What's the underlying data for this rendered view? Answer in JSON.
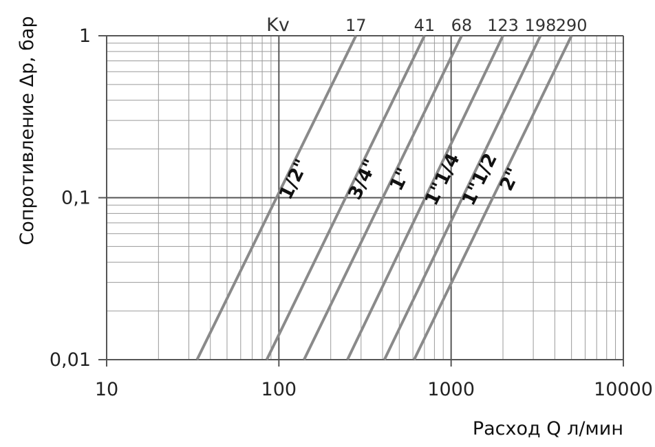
{
  "chart_data": {
    "type": "line",
    "title": "",
    "xlabel": "Расход Q л/мин",
    "ylabel": "Сопротивление Δp, бар",
    "x_scale": "log",
    "y_scale": "log",
    "xlim": [
      10,
      10000
    ],
    "ylim": [
      0.01,
      1
    ],
    "grid": true,
    "x_tick_labels": [
      "10",
      "100",
      "1000",
      "10000"
    ],
    "y_tick_labels": [
      "0,01",
      "0,1",
      "1"
    ],
    "kv_header": "Kv",
    "series": [
      {
        "name": "1/2\"",
        "kv": "17",
        "x": [
          33.5,
          280
        ],
        "y": [
          0.01,
          1
        ]
      },
      {
        "name": "3/4\"",
        "kv": "41",
        "x": [
          85,
          700
        ],
        "y": [
          0.01,
          1
        ]
      },
      {
        "name": "1\"",
        "kv": "68",
        "x": [
          140,
          1150
        ],
        "y": [
          0.01,
          1
        ]
      },
      {
        "name": "1\"1/4",
        "kv": "123",
        "x": [
          250,
          2000
        ],
        "y": [
          0.01,
          1
        ]
      },
      {
        "name": "1\"1/2",
        "kv": "198",
        "x": [
          410,
          3300
        ],
        "y": [
          0.01,
          1
        ]
      },
      {
        "name": "2\"",
        "kv": "290",
        "x": [
          610,
          5000
        ],
        "y": [
          0.01,
          1
        ]
      }
    ],
    "colors": {
      "curve": "#8a8a8a",
      "grid": "#9a9a9a",
      "axis": "#555555"
    }
  }
}
